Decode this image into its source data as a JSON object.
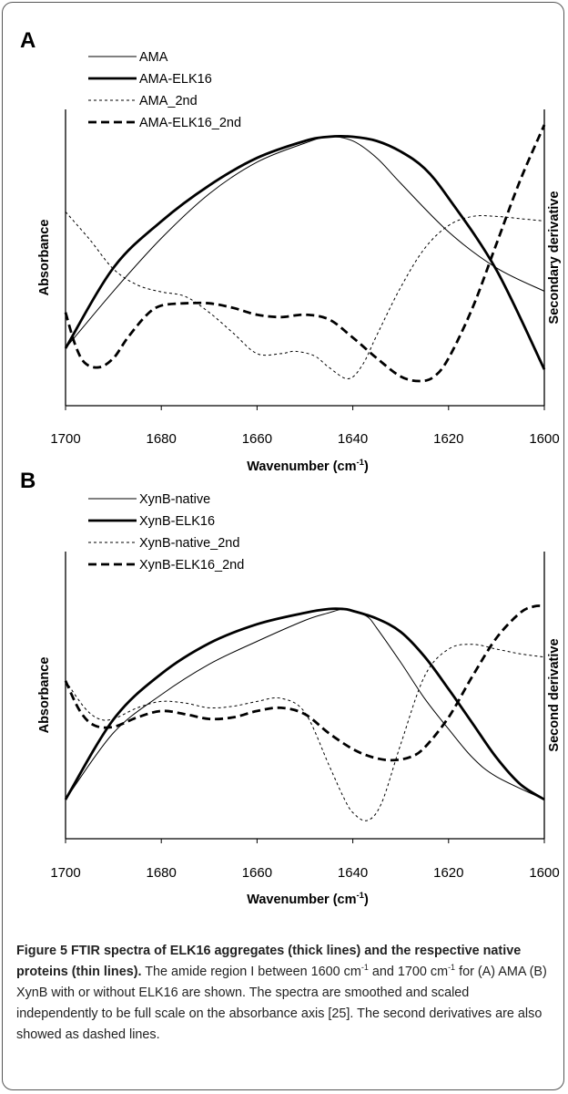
{
  "chart_data": [
    {
      "type": "line",
      "panel_label": "A",
      "xlabel": "Wavenumber (cm",
      "xlabel_sup": "-1",
      "xlabel_end": ")",
      "ylabel_left": "Absorbance",
      "ylabel_right": "Secondary derivative",
      "xlim": [
        1700,
        1600
      ],
      "xticks": [
        "1700",
        "1680",
        "1660",
        "1640",
        "1620",
        "1600"
      ],
      "legend_position": "top-left",
      "series": [
        {
          "name": "AMA",
          "style": "thin-solid",
          "axis": "left",
          "x": [
            1700,
            1690,
            1680,
            1670,
            1660,
            1650,
            1645,
            1640,
            1635,
            1630,
            1620,
            1610,
            1600
          ],
          "y": [
            0.0,
            0.27,
            0.52,
            0.73,
            0.88,
            0.97,
            1.0,
            0.98,
            0.9,
            0.78,
            0.55,
            0.38,
            0.27
          ]
        },
        {
          "name": "AMA-ELK16",
          "style": "thick-solid",
          "axis": "left",
          "x": [
            1700,
            1690,
            1680,
            1670,
            1660,
            1650,
            1645,
            1640,
            1635,
            1630,
            1625,
            1620,
            1610,
            1600
          ],
          "y": [
            0.0,
            0.38,
            0.6,
            0.77,
            0.9,
            0.98,
            1.0,
            1.0,
            0.98,
            0.93,
            0.85,
            0.71,
            0.37,
            -0.1
          ]
        },
        {
          "name": "AMA_2nd",
          "style": "thin-dashed",
          "axis": "right",
          "x": [
            1700,
            1695,
            1690,
            1685,
            1680,
            1675,
            1670,
            1665,
            1660,
            1655,
            1652,
            1648,
            1645,
            1641,
            1638,
            1635,
            1630,
            1625,
            1620,
            1615,
            1610,
            1605,
            1600
          ],
          "y": [
            0.72,
            0.6,
            0.47,
            0.4,
            0.37,
            0.35,
            0.28,
            0.19,
            0.1,
            0.1,
            0.11,
            0.09,
            0.04,
            -0.01,
            0.05,
            0.18,
            0.39,
            0.56,
            0.66,
            0.7,
            0.7,
            0.69,
            0.68
          ]
        },
        {
          "name": "AMA-ELK16_2nd",
          "style": "thick-dashed",
          "axis": "right",
          "x": [
            1700,
            1698,
            1696,
            1693,
            1690,
            1687,
            1683,
            1680,
            1675,
            1670,
            1665,
            1660,
            1655,
            1650,
            1645,
            1640,
            1635,
            1630,
            1626,
            1623,
            1620,
            1615,
            1610,
            1605,
            1600
          ],
          "y": [
            0.28,
            0.14,
            0.06,
            0.04,
            0.08,
            0.17,
            0.27,
            0.31,
            0.32,
            0.32,
            0.3,
            0.27,
            0.26,
            0.27,
            0.25,
            0.17,
            0.08,
            0.0,
            -0.02,
            0.0,
            0.08,
            0.3,
            0.58,
            0.86,
            1.1
          ]
        }
      ]
    },
    {
      "type": "line",
      "panel_label": "B",
      "xlabel": "Wavenumber (cm",
      "xlabel_sup": "-1",
      "xlabel_end": ")",
      "ylabel_left": "Absorbance",
      "ylabel_right": "Second derivative",
      "xlim": [
        1700,
        1600
      ],
      "xticks": [
        "1700",
        "1680",
        "1660",
        "1640",
        "1620",
        "1600"
      ],
      "legend_position": "top-left",
      "series": [
        {
          "name": "XynB-native",
          "style": "thin-solid",
          "axis": "left",
          "x": [
            1700,
            1690,
            1680,
            1670,
            1660,
            1650,
            1645,
            1642,
            1640,
            1637,
            1635,
            1630,
            1625,
            1620,
            1615,
            1610,
            1600
          ],
          "y": [
            0.0,
            0.35,
            0.55,
            0.71,
            0.83,
            0.94,
            0.98,
            1.0,
            0.99,
            0.96,
            0.9,
            0.72,
            0.53,
            0.37,
            0.22,
            0.12,
            0.0
          ]
        },
        {
          "name": "XynB-ELK16",
          "style": "thick-solid",
          "axis": "left",
          "x": [
            1700,
            1690,
            1680,
            1670,
            1660,
            1650,
            1645,
            1642,
            1640,
            1635,
            1630,
            1625,
            1620,
            1615,
            1610,
            1605,
            1600
          ],
          "y": [
            0.0,
            0.42,
            0.66,
            0.82,
            0.92,
            0.98,
            1.0,
            1.0,
            0.99,
            0.95,
            0.88,
            0.75,
            0.58,
            0.4,
            0.22,
            0.08,
            0.0
          ]
        },
        {
          "name": "XynB-native_2nd",
          "style": "thin-dashed",
          "axis": "right",
          "x": [
            1700,
            1696,
            1693,
            1690,
            1685,
            1680,
            1675,
            1670,
            1665,
            1660,
            1655,
            1650,
            1645,
            1642,
            1640,
            1637,
            1634,
            1630,
            1625,
            1620,
            1615,
            1610,
            1605,
            1600
          ],
          "y": [
            0.85,
            0.68,
            0.61,
            0.61,
            0.68,
            0.72,
            0.71,
            0.68,
            0.69,
            0.72,
            0.74,
            0.65,
            0.32,
            0.12,
            0.02,
            -0.03,
            0.08,
            0.45,
            0.88,
            1.05,
            1.08,
            1.05,
            1.02,
            1.0
          ]
        },
        {
          "name": "XynB-ELK16_2nd",
          "style": "thick-dashed",
          "axis": "right",
          "x": [
            1700,
            1697,
            1694,
            1690,
            1685,
            1680,
            1675,
            1670,
            1665,
            1660,
            1655,
            1650,
            1645,
            1640,
            1636,
            1632,
            1628,
            1625,
            1620,
            1615,
            1610,
            1605,
            1602,
            1600
          ],
          "y": [
            0.85,
            0.66,
            0.57,
            0.56,
            0.62,
            0.66,
            0.64,
            0.61,
            0.62,
            0.66,
            0.68,
            0.64,
            0.52,
            0.42,
            0.37,
            0.35,
            0.37,
            0.43,
            0.62,
            0.88,
            1.12,
            1.28,
            1.32,
            1.32
          ]
        }
      ]
    }
  ],
  "caption": {
    "title": "Figure 5 FTIR spectra of ELK16 aggregates (thick lines) and the respective native proteins (thin lines)",
    "title_end": ".",
    "line1_pre": " The amide region I between 1600 cm",
    "line1_sup1": "-1",
    "line1_mid": " and 1700 cm",
    "line1_sup2": "-1",
    "line1_post": " for (A) AMA (B) XynB with or without ELK16 are shown. The spectra are smoothed and scaled independently to be full scale on the absorbance axis [25]. The second derivatives are also showed as dashed lines."
  }
}
